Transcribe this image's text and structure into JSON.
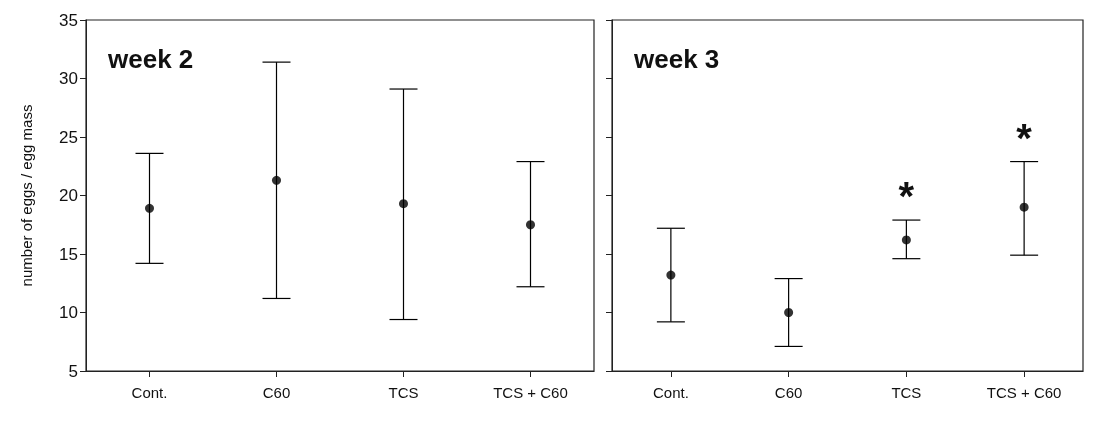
{
  "chart_data": [
    {
      "type": "scatter",
      "title": "week 2",
      "ylabel": "number of eggs / egg mass",
      "categories": [
        "Cont.",
        "C60",
        "TCS",
        "TCS + C60"
      ],
      "series": [
        {
          "color": "#000000",
          "values": [
            18.9,
            21.3,
            19.3,
            17.5
          ],
          "errors": [
            [
              14.2,
              23.6
            ],
            [
              11.2,
              31.4
            ],
            [
              9.4,
              29.1
            ],
            [
              12.2,
              22.9
            ]
          ]
        }
      ],
      "ylim": [
        5,
        35
      ],
      "yticks": [
        5,
        10,
        15,
        20,
        25,
        30,
        35
      ],
      "marker": "circle",
      "grid": false
    },
    {
      "type": "scatter",
      "title": "week 3",
      "categories": [
        "Cont.",
        "C60",
        "TCS",
        "TCS + C60"
      ],
      "series": [
        {
          "color": "#000000",
          "values": [
            13.2,
            10.0,
            16.2,
            19.0
          ],
          "errors": [
            [
              9.2,
              17.2
            ],
            [
              7.1,
              12.9
            ],
            [
              14.6,
              17.9
            ],
            [
              14.9,
              22.9
            ]
          ]
        }
      ],
      "ylim": [
        5,
        35
      ],
      "yticks": [
        5,
        10,
        15,
        20,
        25,
        30,
        35
      ],
      "tick_labels": "x",
      "marker": "circle",
      "grid": false,
      "annotations": [
        "*",
        "*"
      ]
    }
  ]
}
